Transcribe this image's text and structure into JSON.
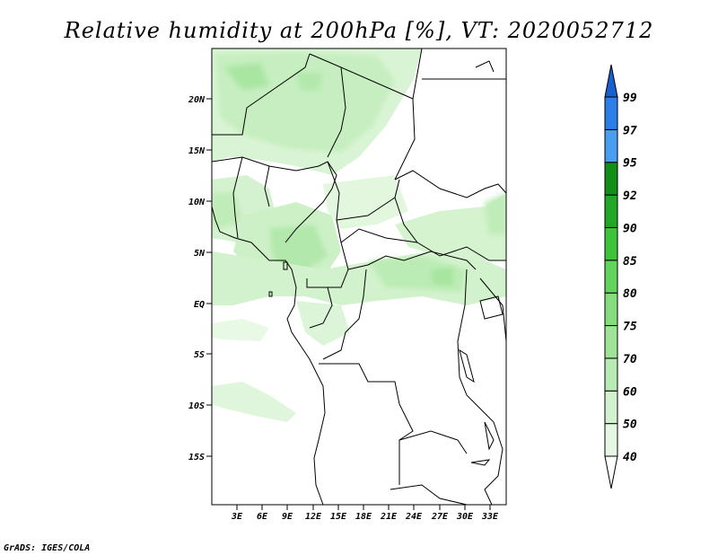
{
  "title": "Relative humidity at 200hPa [%], VT: 2020052712",
  "credit": "GrADS: IGES/COLA",
  "map": {
    "lat_labels": [
      "20N",
      "15N",
      "10N",
      "5N",
      "EQ",
      "5S",
      "10S",
      "15S"
    ],
    "lon_labels": [
      "3E",
      "6E",
      "9E",
      "12E",
      "15E",
      "18E",
      "21E",
      "24E",
      "27E",
      "30E",
      "33E"
    ]
  },
  "colorbar": {
    "levels": [
      "40",
      "50",
      "60",
      "70",
      "75",
      "80",
      "85",
      "90",
      "92",
      "95",
      "97",
      "99"
    ],
    "colors": [
      "#e6f8e4",
      "#d2f2ce",
      "#b8eab3",
      "#9ee398",
      "#84dc7e",
      "#62d45d",
      "#3fc33c",
      "#22a826",
      "#138f18",
      "#4a9ef0",
      "#2c7fe8",
      "#1a5fcf"
    ],
    "under_color": "#ffffff",
    "over_color": "#1a5fcf"
  }
}
